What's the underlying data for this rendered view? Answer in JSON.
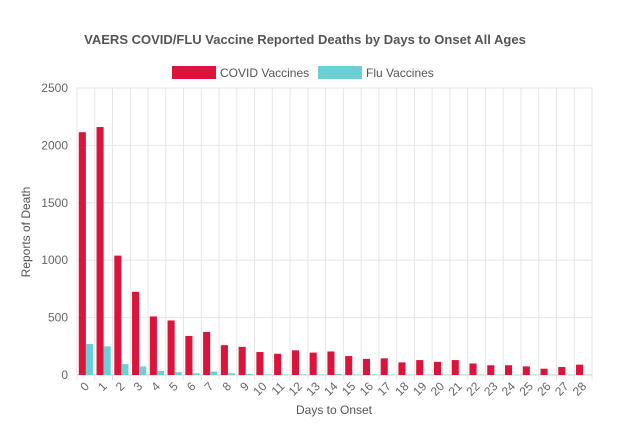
{
  "chart_data": {
    "type": "bar",
    "title": "VAERS COVID/FLU Vaccine Reported Deaths by Days to Onset All Ages",
    "xlabel": "Days to Onset",
    "ylabel": "Reports of Death",
    "ylim": [
      0,
      2500
    ],
    "yticks": [
      "0",
      "500",
      "1000",
      "1500",
      "2000",
      "2500"
    ],
    "grid": true,
    "legend_position": "top",
    "categories": [
      "0",
      "1",
      "2",
      "3",
      "4",
      "5",
      "6",
      "7",
      "8",
      "9",
      "10",
      "11",
      "12",
      "13",
      "14",
      "15",
      "16",
      "17",
      "18",
      "19",
      "20",
      "21",
      "22",
      "23",
      "24",
      "25",
      "26",
      "27",
      "28"
    ],
    "series": [
      {
        "name": "COVID Vaccines",
        "color": "#dc143c",
        "values": [
          2115,
          2160,
          1040,
          725,
          510,
          475,
          340,
          375,
          260,
          245,
          200,
          185,
          215,
          195,
          205,
          165,
          140,
          145,
          110,
          130,
          115,
          130,
          100,
          85,
          85,
          75,
          55,
          70,
          90
        ]
      },
      {
        "name": "Flu Vaccines",
        "color": "#6ccfd8",
        "values": [
          270,
          250,
          95,
          75,
          35,
          25,
          15,
          30,
          15,
          10,
          5,
          5,
          5,
          5,
          10,
          5,
          5,
          3,
          3,
          3,
          2,
          2,
          2,
          2,
          2,
          2,
          2,
          2,
          2
        ]
      }
    ]
  }
}
